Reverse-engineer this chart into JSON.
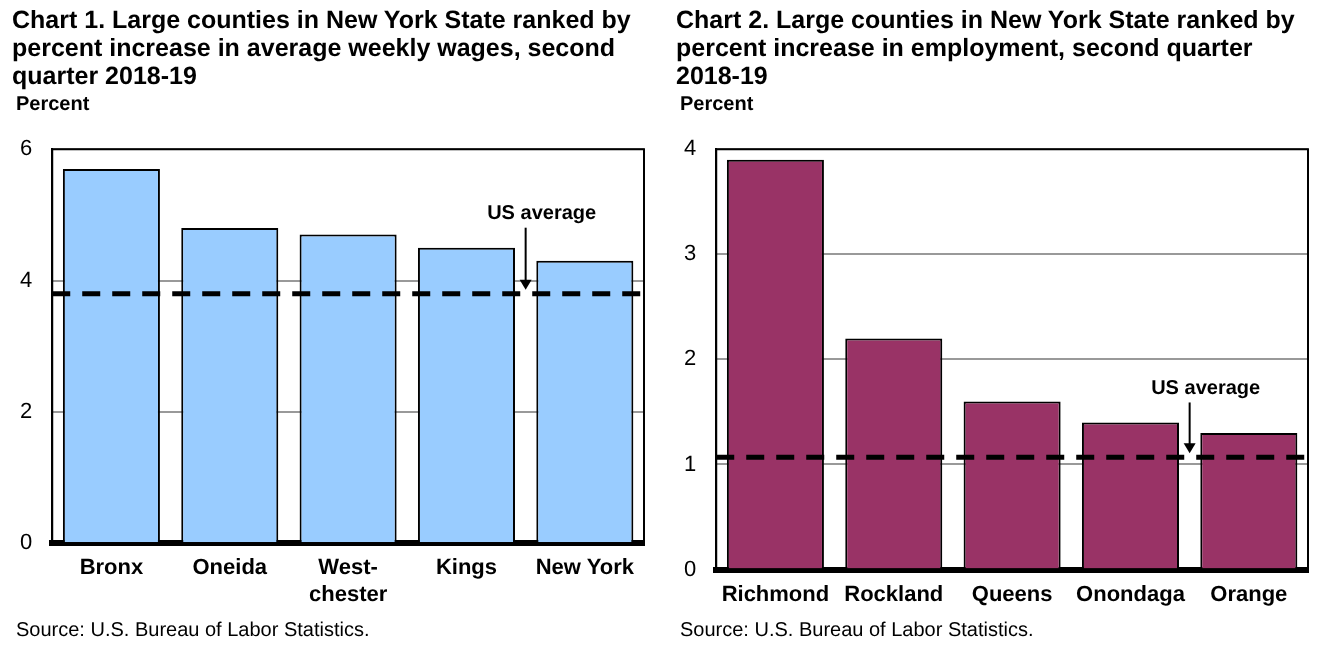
{
  "chart_data": [
    {
      "type": "bar",
      "title": "Chart 1. Large counties in New York State ranked by percent increase in average weekly wages, second quarter 2018-19",
      "ylabel": "Percent",
      "categories": [
        "Bronx",
        "Oneida",
        "West-\nchester",
        "Kings",
        "New York"
      ],
      "values": [
        5.7,
        4.8,
        4.7,
        4.5,
        4.3
      ],
      "color": "#99ccff",
      "ylim": [
        0,
        6
      ],
      "yticks": [
        0,
        2,
        4,
        6
      ],
      "grid": "y",
      "ref_lines": [
        {
          "axis": "y",
          "value": 3.8,
          "label": "US average",
          "line_style": "dashed",
          "color": "#000000"
        }
      ],
      "annotations": [
        "Source: U.S. Bureau of Labor Statistics."
      ]
    },
    {
      "type": "bar",
      "title": "Chart 2. Large counties in New York State ranked by percent increase in employment, second quarter 2018-19",
      "ylabel": "Percent",
      "categories": [
        "Richmond",
        "Rockland",
        "Queens",
        "Onondaga",
        "Orange"
      ],
      "values": [
        3.9,
        2.2,
        1.6,
        1.4,
        1.3
      ],
      "color": "#993366",
      "ylim": [
        0,
        4
      ],
      "yticks": [
        0,
        1,
        2,
        3,
        4
      ],
      "grid": "y",
      "ref_lines": [
        {
          "axis": "y",
          "value": 1.07,
          "label": "US average",
          "line_style": "dashed",
          "color": "#000000"
        }
      ],
      "annotations": [
        "Source: U.S. Bureau of Labor Statistics."
      ]
    }
  ]
}
